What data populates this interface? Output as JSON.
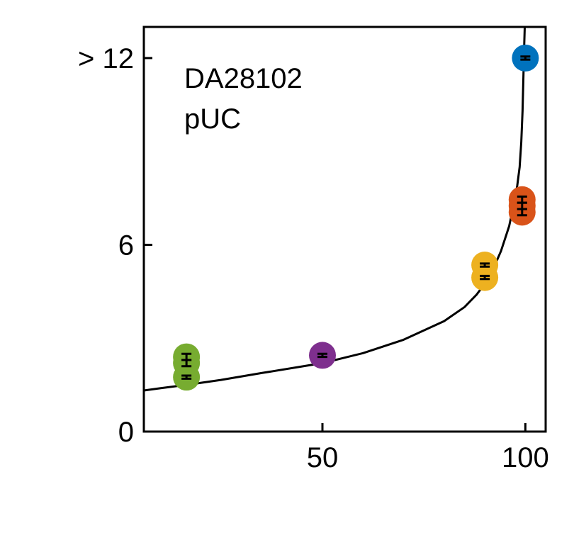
{
  "chart_data": {
    "type": "scatter",
    "title": "",
    "xlabel": "",
    "ylabel": "",
    "xlim": [
      6,
      105
    ],
    "ylim": [
      0,
      13
    ],
    "grid": false,
    "legend": "none",
    "annotation_lines": [
      "DA28102",
      "pUC"
    ],
    "x_ticks": [
      {
        "value": 50,
        "label": "50"
      },
      {
        "value": 100,
        "label": "100"
      }
    ],
    "y_ticks": [
      {
        "value": 0,
        "label": "0"
      },
      {
        "value": 6,
        "label": "6"
      },
      {
        "value": 12,
        "label": "> 12"
      }
    ],
    "series": [
      {
        "name": "green",
        "color": "#77AC30",
        "points": [
          {
            "x": 16.5,
            "y": 2.4,
            "err": 0.1
          },
          {
            "x": 16.5,
            "y": 2.2,
            "err": 0.1
          },
          {
            "x": 16.5,
            "y": 1.75,
            "err": 0.05
          }
        ]
      },
      {
        "name": "purple",
        "color": "#7E2F8E",
        "points": [
          {
            "x": 50,
            "y": 2.45,
            "err": 0.05
          }
        ]
      },
      {
        "name": "yellow",
        "color": "#EDB120",
        "points": [
          {
            "x": 90,
            "y": 5.35,
            "err": 0.05
          },
          {
            "x": 90,
            "y": 4.95,
            "err": 0.05
          }
        ]
      },
      {
        "name": "orange",
        "color": "#D95319",
        "points": [
          {
            "x": 99.2,
            "y": 7.45,
            "err": 0.1
          },
          {
            "x": 99.2,
            "y": 7.25,
            "err": 0.1
          },
          {
            "x": 99.2,
            "y": 7.05,
            "err": 0.1
          }
        ]
      },
      {
        "name": "blue",
        "color": "#0072BD",
        "points": [
          {
            "x": 100,
            "y": 12,
            "err": 0.05
          }
        ]
      }
    ],
    "fit_curve": {
      "color": "#000000",
      "asymptote_x": 100.25,
      "points": [
        [
          6,
          1.32
        ],
        [
          10,
          1.39
        ],
        [
          16.5,
          1.5
        ],
        [
          25,
          1.66
        ],
        [
          35,
          1.88
        ],
        [
          50,
          2.2
        ],
        [
          60,
          2.52
        ],
        [
          70,
          2.95
        ],
        [
          80,
          3.55
        ],
        [
          85,
          4.0
        ],
        [
          88,
          4.4
        ],
        [
          90,
          4.75
        ],
        [
          92,
          5.2
        ],
        [
          94,
          5.8
        ],
        [
          96,
          6.6
        ],
        [
          97,
          7.2
        ],
        [
          98,
          7.9
        ],
        [
          98.6,
          8.5
        ],
        [
          99.0,
          9.3
        ],
        [
          99.3,
          10.3
        ],
        [
          99.5,
          11.3
        ],
        [
          99.7,
          12.3
        ],
        [
          99.85,
          13.0
        ]
      ]
    }
  }
}
